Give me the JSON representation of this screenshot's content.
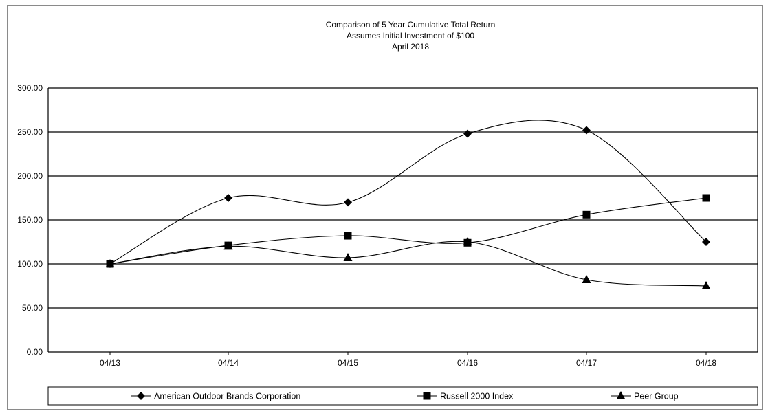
{
  "chart_data": {
    "type": "line",
    "title_lines": [
      "Comparison of 5 Year Cumulative Total Return",
      "Assumes Initial Investment of $100",
      "April 2018"
    ],
    "categories": [
      "04/13",
      "04/14",
      "04/15",
      "04/16",
      "04/17",
      "04/18"
    ],
    "y_ticks": [
      "0.00",
      "50.00",
      "100.00",
      "150.00",
      "200.00",
      "250.00",
      "300.00"
    ],
    "ylim": [
      0,
      300
    ],
    "grid": true,
    "legend_position": "bottom",
    "series": [
      {
        "name": "American Outdoor Brands Corporation",
        "marker": "diamond",
        "values": [
          100,
          175,
          170,
          248,
          252,
          125
        ]
      },
      {
        "name": "Russell 2000 Index",
        "marker": "square",
        "values": [
          100,
          121,
          132,
          124,
          156,
          175
        ]
      },
      {
        "name": "Peer Group",
        "marker": "triangle",
        "values": [
          100,
          120,
          107,
          125,
          82,
          75
        ]
      }
    ]
  }
}
